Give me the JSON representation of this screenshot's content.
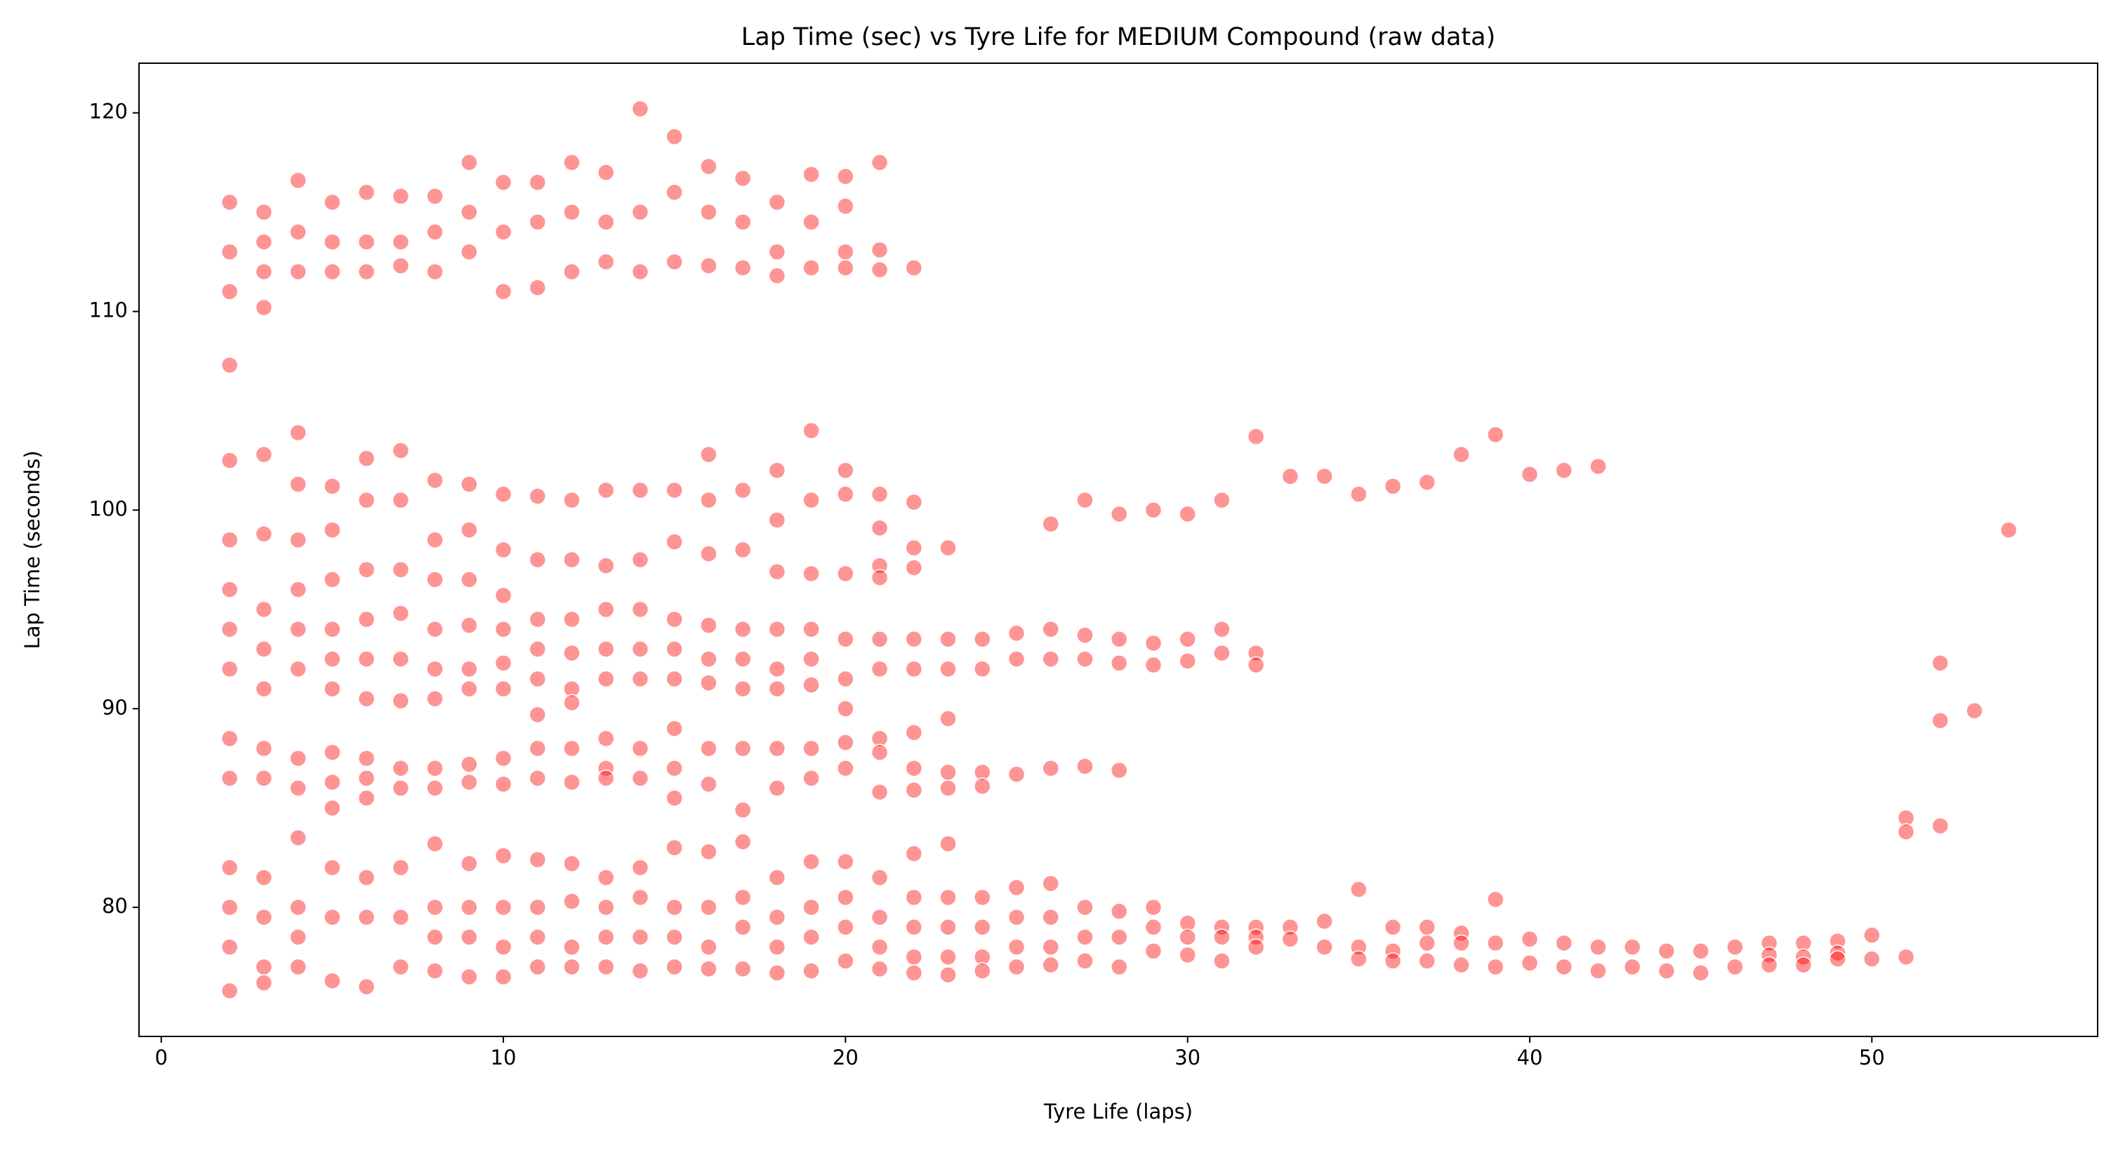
{
  "chart_data": {
    "type": "scatter",
    "title": "Lap Time (sec) vs Tyre Life for MEDIUM Compound (raw data)",
    "xlabel": "Tyre Life (laps)",
    "ylabel": "Lap Time (seconds)",
    "color": "#ff0000",
    "xlim": [
      -0.65,
      56.6
    ],
    "ylim": [
      73.5,
      122.5
    ],
    "xticks": [
      0,
      10,
      20,
      30,
      40,
      50
    ],
    "yticks": [
      80,
      90,
      100,
      110,
      120
    ],
    "x": [
      2,
      2,
      2,
      2,
      2,
      2,
      2,
      2,
      2,
      2,
      2,
      2,
      2,
      2,
      2,
      3,
      3,
      3,
      3,
      3,
      3,
      3,
      3,
      3,
      3,
      3,
      3,
      3,
      3,
      3,
      4,
      4,
      4,
      4,
      4,
      4,
      4,
      4,
      4,
      4,
      4,
      4,
      4,
      4,
      4,
      5,
      5,
      5,
      5,
      5,
      5,
      5,
      5,
      5,
      5,
      5,
      5,
      5,
      5,
      5,
      6,
      6,
      6,
      6,
      6,
      6,
      6,
      6,
      6,
      6,
      6,
      6,
      6,
      6,
      6,
      7,
      7,
      7,
      7,
      7,
      7,
      7,
      7,
      7,
      7,
      7,
      7,
      7,
      7,
      8,
      8,
      8,
      8,
      8,
      8,
      8,
      8,
      8,
      8,
      8,
      8,
      8,
      8,
      8,
      9,
      9,
      9,
      9,
      9,
      9,
      9,
      9,
      9,
      9,
      9,
      9,
      9,
      9,
      9,
      10,
      10,
      10,
      10,
      10,
      10,
      10,
      10,
      10,
      10,
      10,
      10,
      10,
      10,
      10,
      11,
      11,
      11,
      11,
      11,
      11,
      11,
      11,
      11,
      11,
      11,
      11,
      11,
      11,
      11,
      12,
      12,
      12,
      12,
      12,
      12,
      12,
      12,
      12,
      12,
      12,
      12,
      12,
      12,
      12,
      13,
      13,
      13,
      13,
      13,
      13,
      13,
      13,
      13,
      13,
      13,
      13,
      13,
      13,
      13,
      14,
      14,
      14,
      14,
      14,
      14,
      14,
      14,
      14,
      14,
      14,
      14,
      14,
      14,
      15,
      15,
      15,
      15,
      15,
      15,
      15,
      15,
      15,
      15,
      15,
      15,
      15,
      15,
      15,
      16,
      16,
      16,
      16,
      16,
      16,
      16,
      16,
      16,
      16,
      16,
      16,
      16,
      16,
      16,
      17,
      17,
      17,
      17,
      17,
      17,
      17,
      17,
      17,
      17,
      17,
      17,
      17,
      17,
      18,
      18,
      18,
      18,
      18,
      18,
      18,
      18,
      18,
      18,
      18,
      18,
      18,
      18,
      18,
      19,
      19,
      19,
      19,
      19,
      19,
      19,
      19,
      19,
      19,
      19,
      19,
      19,
      19,
      19,
      20,
      20,
      20,
      20,
      20,
      20,
      20,
      20,
      20,
      20,
      20,
      20,
      20,
      20,
      20,
      20,
      21,
      21,
      21,
      21,
      21,
      21,
      21,
      21,
      21,
      21,
      21,
      21,
      21,
      21,
      21,
      21,
      22,
      22,
      22,
      22,
      22,
      22,
      22,
      22,
      22,
      22,
      22,
      22,
      22,
      22,
      23,
      23,
      23,
      23,
      23,
      23,
      23,
      23,
      23,
      23,
      23,
      24,
      24,
      24,
      24,
      24,
      24,
      24,
      24,
      25,
      25,
      25,
      25,
      25,
      25,
      25,
      26,
      26,
      26,
      26,
      26,
      26,
      26,
      26,
      27,
      27,
      27,
      27,
      27,
      27,
      27,
      28,
      28,
      28,
      28,
      28,
      28,
      28,
      29,
      29,
      29,
      29,
      29,
      29,
      30,
      30,
      30,
      30,
      30,
      30,
      31,
      31,
      31,
      31,
      31,
      31,
      32,
      32,
      32,
      32,
      32,
      32,
      33,
      33,
      33,
      34,
      34,
      34,
      35,
      35,
      35,
      35,
      36,
      36,
      36,
      36,
      37,
      37,
      37,
      37,
      38,
      38,
      38,
      38,
      39,
      39,
      39,
      39,
      40,
      40,
      40,
      41,
      41,
      41,
      42,
      42,
      42,
      43,
      43,
      44,
      44,
      45,
      45,
      46,
      46,
      47,
      47,
      47,
      48,
      48,
      48,
      49,
      49,
      49,
      50,
      50,
      51,
      51,
      51,
      52,
      52,
      52,
      53,
      54
    ],
    "y": [
      115.5,
      113,
      111,
      107.3,
      102.5,
      98.5,
      96,
      94,
      92,
      88.5,
      86.5,
      82,
      80,
      78,
      75.8,
      115,
      113.5,
      112,
      110.2,
      102.8,
      98.8,
      95,
      93,
      91,
      88,
      86.5,
      81.5,
      79.5,
      77,
      76.2,
      116.6,
      114,
      112,
      103.9,
      101.3,
      98.5,
      96,
      94,
      92,
      87.5,
      86,
      83.5,
      80,
      78.5,
      77,
      115.5,
      113.5,
      112,
      101.2,
      99,
      96.5,
      94,
      92.5,
      91,
      87.8,
      86.3,
      85,
      82,
      79.5,
      76.3,
      116,
      113.5,
      112,
      102.6,
      100.5,
      97,
      94.5,
      92.5,
      90.5,
      87.5,
      86.5,
      85.5,
      81.5,
      79.5,
      76,
      115.8,
      113.5,
      112.3,
      103,
      100.5,
      97,
      94.8,
      92.5,
      90.4,
      87,
      86,
      82,
      79.5,
      77,
      115.8,
      114,
      112,
      101.5,
      98.5,
      96.5,
      94,
      92,
      90.5,
      87,
      86,
      83.2,
      80,
      78.5,
      76.8,
      117.5,
      115,
      113,
      101.3,
      99,
      96.5,
      94.2,
      92,
      91,
      87.2,
      86.3,
      82.2,
      80,
      78.5,
      76.5,
      116.5,
      114,
      111,
      100.8,
      98,
      95.7,
      94,
      92.3,
      91,
      87.5,
      86.2,
      82.6,
      80,
      78,
      76.5,
      116.5,
      114.5,
      111.2,
      100.7,
      97.5,
      94.5,
      93,
      91.5,
      89.7,
      88,
      86.5,
      82.4,
      80,
      78.5,
      77,
      117.5,
      115,
      112,
      100.5,
      97.5,
      94.5,
      92.8,
      91,
      90.3,
      88,
      86.3,
      82.2,
      80.3,
      78,
      77,
      117,
      114.5,
      112.5,
      101,
      97.2,
      95,
      93,
      91.5,
      88.5,
      87,
      86.5,
      81.5,
      80,
      78.5,
      77,
      120.2,
      115,
      112,
      101,
      97.5,
      95,
      93,
      91.5,
      88,
      86.5,
      82,
      80.5,
      78.5,
      76.8,
      118.8,
      116,
      112.5,
      101,
      98.4,
      94.5,
      93,
      91.5,
      89,
      87,
      85.5,
      83,
      80,
      78.5,
      77,
      117.3,
      115,
      112.3,
      102.8,
      100.5,
      97.8,
      94.2,
      92.5,
      91.3,
      88,
      86.2,
      82.8,
      80,
      78,
      76.9,
      116.7,
      114.5,
      112.2,
      101,
      98,
      94,
      92.5,
      91,
      88,
      84.9,
      83.3,
      80.5,
      79,
      76.9,
      115.5,
      113,
      111.8,
      102,
      99.5,
      96.9,
      94,
      92,
      91,
      88,
      86,
      81.5,
      79.5,
      78,
      76.7,
      116.9,
      114.5,
      112.2,
      104,
      100.5,
      96.8,
      94,
      92.5,
      91.2,
      88,
      86.5,
      82.3,
      80,
      78.5,
      76.8,
      116.8,
      115.3,
      113,
      112.2,
      102,
      100.8,
      96.8,
      93.5,
      91.5,
      90,
      88.3,
      87,
      82.3,
      80.5,
      79,
      77.3,
      117.5,
      113.1,
      112.1,
      100.8,
      99.1,
      97.2,
      96.6,
      93.5,
      92,
      88.5,
      87.8,
      85.8,
      81.5,
      79.5,
      78,
      76.9,
      112.2,
      100.4,
      98.1,
      97.1,
      93.5,
      92,
      88.8,
      87,
      85.9,
      82.7,
      80.5,
      79,
      77.5,
      76.7,
      98.1,
      93.5,
      92,
      89.5,
      86.8,
      86,
      83.2,
      80.5,
      79,
      77.5,
      76.6,
      93.5,
      92,
      86.8,
      86.1,
      80.5,
      79,
      77.5,
      76.8,
      93.8,
      92.5,
      86.7,
      81,
      79.5,
      78,
      77,
      99.3,
      94,
      92.5,
      87,
      81.2,
      79.5,
      78,
      77.1,
      100.5,
      93.7,
      92.5,
      87.1,
      80,
      78.5,
      77.3,
      99.8,
      93.5,
      92.3,
      86.9,
      79.8,
      78.5,
      77,
      100,
      93.3,
      92.2,
      80,
      79,
      77.8,
      99.8,
      93.5,
      92.4,
      79.2,
      78.5,
      77.6,
      100.5,
      94,
      92.8,
      79,
      78.5,
      77.3,
      103.7,
      92.8,
      92.2,
      79,
      78.5,
      78,
      101.7,
      79,
      78.4,
      101.7,
      79.3,
      78,
      100.8,
      80.9,
      78,
      77.4,
      101.2,
      79,
      77.8,
      77.3,
      101.4,
      79,
      78.2,
      77.3,
      102.8,
      78.7,
      78.2,
      77.1,
      103.8,
      80.4,
      78.2,
      77,
      101.8,
      78.4,
      77.2,
      102,
      78.2,
      77,
      102.2,
      78,
      76.8,
      78,
      77,
      77.8,
      76.8,
      77.8,
      76.7,
      78,
      77,
      78.2,
      77.6,
      77.1,
      78.2,
      77.5,
      77.1,
      78.3,
      77.7,
      77.4,
      78.6,
      77.4,
      84.5,
      83.8,
      77.5,
      92.3,
      89.4,
      84.1,
      89.9,
      99
    ]
  }
}
